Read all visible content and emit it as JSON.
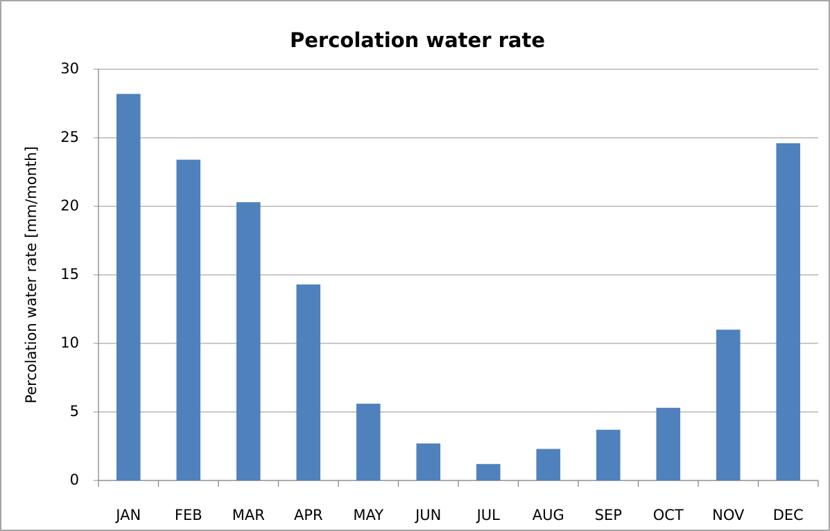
{
  "chart_data": {
    "type": "bar",
    "title": "Percolation water rate",
    "y_label": "Percolation water rate [mm/month]",
    "categories": [
      "JAN",
      "FEB",
      "MAR",
      "APR",
      "MAY",
      "JUN",
      "JUL",
      "AUG",
      "SEP",
      "OCT",
      "NOV",
      "DEC"
    ],
    "values": [
      28.2,
      23.4,
      20.3,
      14.3,
      5.6,
      2.7,
      1.2,
      2.3,
      3.7,
      5.3,
      11.0,
      24.6
    ],
    "color": "#4f81bd",
    "ylim": [
      0,
      30
    ],
    "yticks": [
      0,
      5,
      10,
      15,
      20,
      25,
      30
    ],
    "grid": true
  }
}
